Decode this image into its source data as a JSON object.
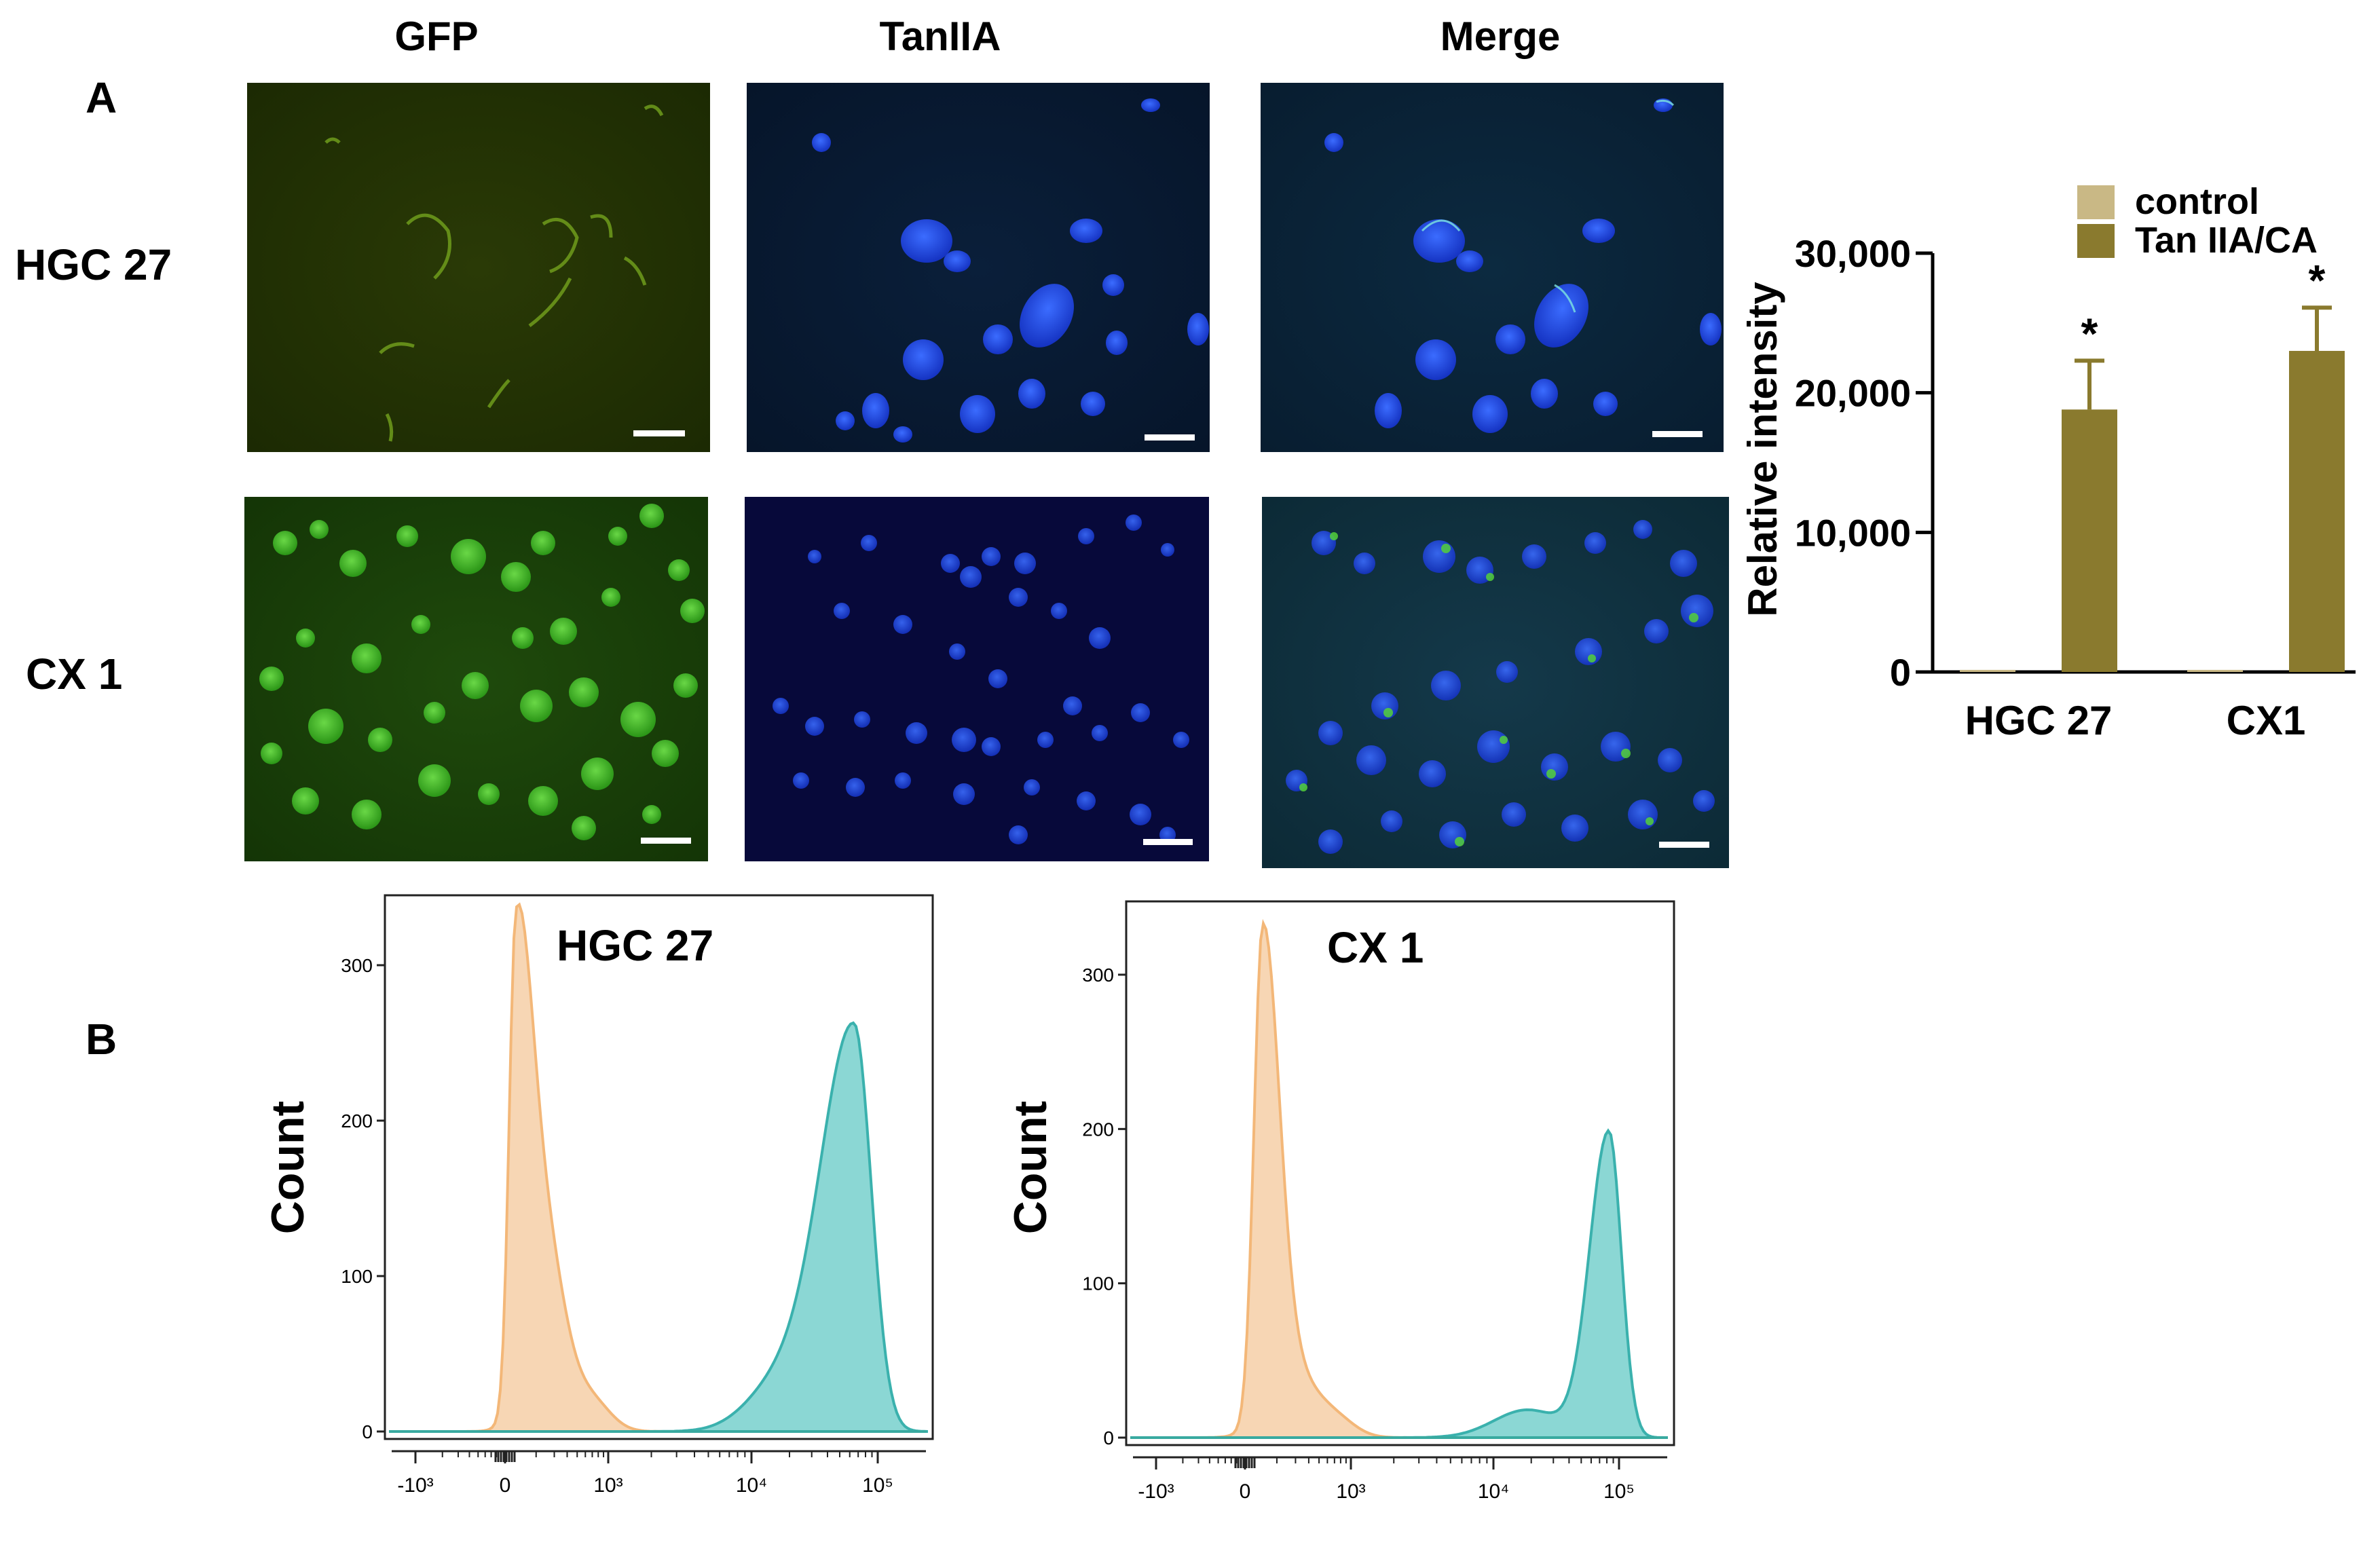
{
  "panel_a": {
    "label": "A",
    "columns": [
      "GFP",
      "TanIIA",
      "Merge"
    ],
    "rows": [
      "HGC 27",
      "CX 1"
    ]
  },
  "panel_b": {
    "label": "B"
  },
  "colors": {
    "control": "#c9b885",
    "tan_iia_ca": "#8a7a2e",
    "unstained_hist": "#f7d2ac",
    "unstained_hist_line": "#f2b06a",
    "stained_hist": "#7fd3d0",
    "stained_hist_line": "#25a9a5"
  },
  "chart_data": [
    {
      "type": "bar",
      "categories": [
        "HGC 27",
        "CX1"
      ],
      "series": [
        {
          "name": "control",
          "values": [
            150,
            150
          ],
          "errors": [
            0,
            0
          ]
        },
        {
          "name": "Tan IIA/CA",
          "values": [
            18800,
            23000
          ],
          "errors": [
            3500,
            3100
          ]
        }
      ],
      "significance": [
        "*",
        "*"
      ],
      "ylabel": "Relative intensity",
      "ylim": [
        0,
        30000
      ],
      "yticks": [
        0,
        10000,
        20000,
        30000
      ],
      "ytick_labels": [
        "0",
        "10,000",
        "20,000",
        "30,000"
      ],
      "legend_position": "top-right"
    },
    {
      "type": "area",
      "title": "HGC 27",
      "ylabel": "Count",
      "ylim": [
        0,
        300
      ],
      "yticks": [
        0,
        100,
        200,
        300
      ],
      "xscale": "biexponential",
      "xtick_labels": [
        "-10³",
        "0",
        "10³",
        "10⁴",
        "10⁵"
      ],
      "series": [
        {
          "name": "",
          "peak_x": 0,
          "peak_count": 305
        },
        {
          "name": "",
          "peak_x": 60000,
          "peak_count": 260
        }
      ]
    },
    {
      "type": "area",
      "title": "CX 1",
      "ylabel": "Count",
      "ylim": [
        0,
        300
      ],
      "yticks": [
        0,
        100,
        200,
        300
      ],
      "xscale": "biexponential",
      "xtick_labels": [
        "-10³",
        "0",
        "10³",
        "10⁴",
        "10⁵"
      ],
      "series": [
        {
          "name": "",
          "peak_x": 0,
          "peak_count": 315
        },
        {
          "name": "",
          "peak_x": 70000,
          "peak_count": 198
        }
      ]
    }
  ]
}
